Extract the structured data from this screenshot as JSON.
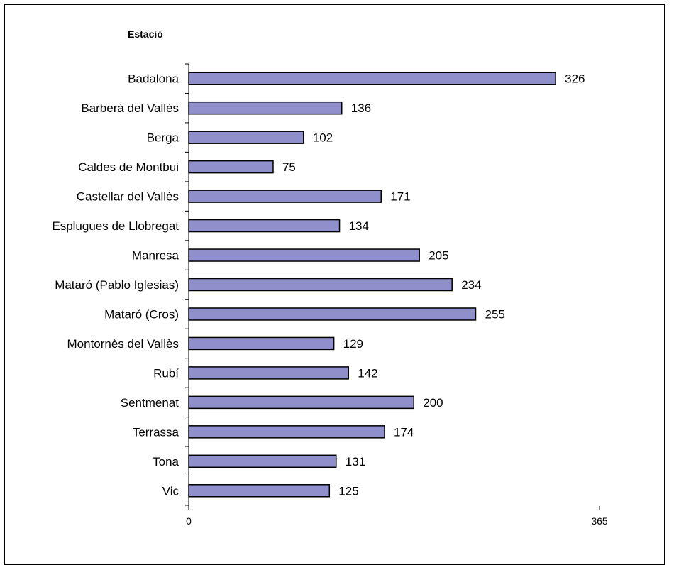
{
  "chart_data": {
    "type": "bar",
    "orientation": "horizontal",
    "ylabel": "Estació",
    "xlabel": "",
    "title": "",
    "categories": [
      "Badalona",
      "Barberà del Vallès",
      "Berga",
      "Caldes de Montbui",
      "Castellar del Vallès",
      "Esplugues de Llobregat",
      "Manresa",
      "Mataró (Pablo Iglesias)",
      "Mataró (Cros)",
      "Montornès del Vallès",
      "Rubí",
      "Sentmenat",
      "Terrassa",
      "Tona",
      "Vic"
    ],
    "values": [
      326,
      136,
      102,
      75,
      171,
      134,
      205,
      234,
      255,
      129,
      142,
      200,
      174,
      131,
      125
    ],
    "xlim": [
      0,
      365
    ],
    "xticks": [
      "0",
      "365"
    ],
    "bar_color": "#8f8fcc",
    "bar_edge_color": "#000000",
    "grid": false,
    "legend": "none"
  }
}
